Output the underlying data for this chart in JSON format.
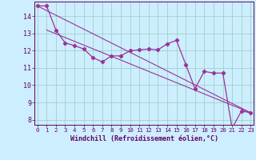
{
  "x_ticks": [
    0,
    1,
    2,
    3,
    4,
    5,
    6,
    7,
    8,
    9,
    10,
    11,
    12,
    13,
    14,
    15,
    16,
    17,
    18,
    19,
    20,
    21,
    22,
    23
  ],
  "line1": {
    "x": [
      0,
      1,
      2,
      3,
      4,
      5,
      6,
      7,
      8,
      9,
      10,
      11,
      12,
      13,
      14,
      15,
      16,
      17,
      18,
      19,
      20,
      21,
      22,
      23
    ],
    "y": [
      14.6,
      14.6,
      13.2,
      12.45,
      12.3,
      12.1,
      11.6,
      11.35,
      11.7,
      11.7,
      12.0,
      12.05,
      12.1,
      12.05,
      12.4,
      12.6,
      11.2,
      9.8,
      10.8,
      10.7,
      10.7,
      7.5,
      8.5,
      8.4
    ],
    "color": "#993399",
    "linewidth": 0.9,
    "marker": "D",
    "markersize": 2.2
  },
  "line2_x": [
    0,
    23
  ],
  "line2_y": [
    14.6,
    8.4
  ],
  "line3_x": [
    1,
    23
  ],
  "line3_y": [
    13.2,
    8.4
  ],
  "ylim": [
    7.7,
    14.85
  ],
  "yticks": [
    8,
    9,
    10,
    11,
    12,
    13,
    14
  ],
  "xlim": [
    -0.3,
    23.3
  ],
  "xlabel": "Windchill (Refroidissement éolien,°C)",
  "bg_color": "#cceeff",
  "grid_color": "#99ccbb",
  "tick_color": "#660066",
  "label_color": "#660066",
  "axis_color": "#660066",
  "line_color": "#993399"
}
